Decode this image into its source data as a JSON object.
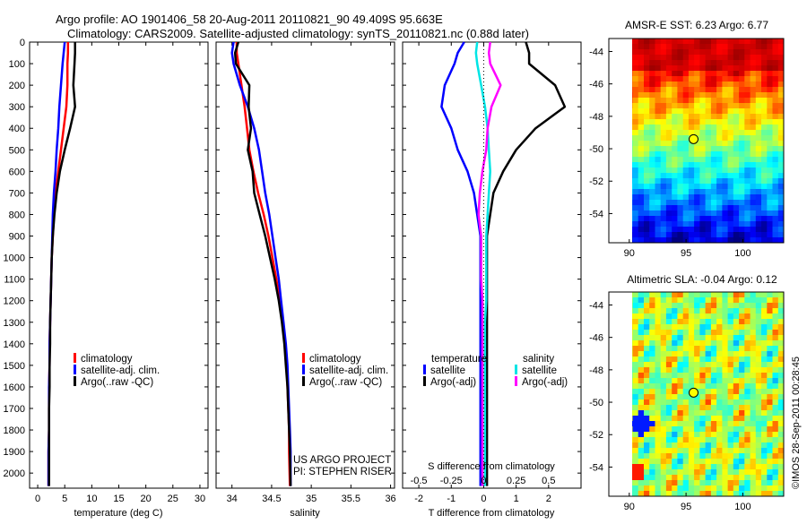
{
  "header": {
    "title_line1": "Argo profile: AO 1901406_58 20-Aug-2011 20110821_90 49.409S 95.663E",
    "title_line2": "Climatology: CARS2009. Satellite-adjusted climatology: synTS_20110821.nc (0.88d later)"
  },
  "credit": "©IMOS 28-Sep-2011 00:28:45",
  "colors": {
    "climatology": "#ff0000",
    "satellite": "#0000ff",
    "argo": "#000000",
    "sat_salinity": "#00e5e5",
    "argo_salinity": "#ff00ff"
  },
  "chart_data": [
    {
      "id": "temperature",
      "type": "line",
      "xlabel": "temperature (deg C)",
      "xlim": [
        -1.5,
        31.5
      ],
      "xticks": [
        "0",
        "5",
        "10",
        "15",
        "20",
        "25",
        "30"
      ],
      "xtick_values": [
        0,
        5,
        10,
        15,
        20,
        25,
        30
      ],
      "ylim": [
        2070,
        0
      ],
      "yticks": [
        "0",
        "100",
        "200",
        "300",
        "400",
        "500",
        "600",
        "700",
        "800",
        "900",
        "1000",
        "1100",
        "1200",
        "1300",
        "1400",
        "1500",
        "1600",
        "1700",
        "1800",
        "1900",
        "2000"
      ],
      "ytick_values": [
        0,
        100,
        200,
        300,
        400,
        500,
        600,
        700,
        800,
        900,
        1000,
        1100,
        1200,
        1300,
        1400,
        1500,
        1600,
        1700,
        1800,
        1900,
        2000
      ],
      "legend": [
        "climatology",
        "satellite-adj. clim.",
        "Argo(..raw -QC)"
      ],
      "series": [
        {
          "name": "climatology",
          "color": "#ff0000",
          "x": [
            5.6,
            5.6,
            5.5,
            5.5,
            5.3,
            4.8,
            4.3,
            3.8,
            3.3,
            3.0,
            2.8,
            2.6,
            2.5,
            2.4,
            2.3,
            2.2,
            2.2,
            2.1,
            2.1,
            2.1,
            2.0,
            2.0
          ],
          "y": [
            0,
            50,
            100,
            200,
            300,
            400,
            500,
            600,
            700,
            800,
            900,
            1000,
            1100,
            1200,
            1300,
            1400,
            1500,
            1600,
            1700,
            1800,
            1900,
            2060
          ]
        },
        {
          "name": "satellite-adj. clim.",
          "color": "#0000ff",
          "x": [
            5.0,
            4.8,
            4.6,
            4.3,
            4.0,
            3.8,
            3.5,
            3.3,
            3.0,
            2.8,
            2.7,
            2.6,
            2.5,
            2.4,
            2.3,
            2.2,
            2.2,
            2.1,
            2.1,
            2.1,
            2.0,
            2.0
          ],
          "y": [
            0,
            50,
            100,
            200,
            300,
            400,
            500,
            600,
            700,
            800,
            900,
            1000,
            1100,
            1200,
            1300,
            1400,
            1500,
            1600,
            1700,
            1800,
            1900,
            2060
          ]
        },
        {
          "name": "Argo(..raw -QC)",
          "color": "#000000",
          "x": [
            6.9,
            6.9,
            6.8,
            6.6,
            6.9,
            6.0,
            5.0,
            4.1,
            3.5,
            3.1,
            2.8,
            2.6,
            2.5,
            2.4,
            2.3,
            2.3,
            2.2,
            2.2,
            2.1,
            2.1,
            2.1,
            2.1
          ],
          "y": [
            0,
            50,
            100,
            200,
            300,
            400,
            500,
            600,
            700,
            800,
            900,
            1000,
            1100,
            1200,
            1300,
            1400,
            1500,
            1600,
            1700,
            1800,
            1900,
            2060
          ]
        }
      ]
    },
    {
      "id": "salinity",
      "type": "line",
      "xlabel": "salinity",
      "xlim": [
        33.8,
        36.05
      ],
      "xticks": [
        "34",
        "34.5",
        "35",
        "35.5",
        "36"
      ],
      "xtick_values": [
        34,
        34.5,
        35,
        35.5,
        36
      ],
      "ylim": [
        2070,
        0
      ],
      "legend": [
        "climatology",
        "satellite-adj. clim.",
        "Argo(..raw -QC)"
      ],
      "annotations": [
        "US ARGO PROJECT",
        "PI: STEPHEN RISER"
      ],
      "series": [
        {
          "name": "climatology",
          "color": "#ff0000",
          "x": [
            34.06,
            34.06,
            34.08,
            34.12,
            34.16,
            34.19,
            34.22,
            34.27,
            34.33,
            34.4,
            34.46,
            34.51,
            34.56,
            34.6,
            34.64,
            34.67,
            34.69,
            34.7,
            34.71,
            34.72,
            34.72,
            34.73
          ],
          "y": [
            0,
            50,
            100,
            200,
            300,
            400,
            500,
            600,
            700,
            800,
            900,
            1000,
            1100,
            1200,
            1300,
            1400,
            1500,
            1600,
            1700,
            1800,
            1900,
            2060
          ]
        },
        {
          "name": "satellite-adj. clim.",
          "color": "#0000ff",
          "x": [
            34.02,
            34.0,
            34.02,
            34.1,
            34.2,
            34.28,
            34.34,
            34.38,
            34.42,
            34.47,
            34.51,
            34.55,
            34.59,
            34.62,
            34.65,
            34.68,
            34.7,
            34.71,
            34.72,
            34.73,
            34.74,
            34.74
          ],
          "y": [
            0,
            50,
            100,
            200,
            300,
            400,
            500,
            600,
            700,
            800,
            900,
            1000,
            1100,
            1200,
            1300,
            1400,
            1500,
            1600,
            1700,
            1800,
            1900,
            2060
          ]
        },
        {
          "name": "Argo(..raw -QC)",
          "color": "#000000",
          "x": [
            34.08,
            34.04,
            34.05,
            34.22,
            34.21,
            34.24,
            34.2,
            34.26,
            34.28,
            34.35,
            34.42,
            34.48,
            34.54,
            34.59,
            34.63,
            34.66,
            34.68,
            34.7,
            34.71,
            34.72,
            34.73,
            34.74
          ],
          "y": [
            0,
            50,
            100,
            200,
            300,
            400,
            500,
            600,
            700,
            800,
            900,
            1000,
            1100,
            1200,
            1300,
            1400,
            1500,
            1600,
            1700,
            1800,
            1900,
            2060
          ]
        }
      ]
    },
    {
      "id": "difference",
      "type": "line",
      "xlabel": "T difference from climatology",
      "xlabel_top": "S difference from climatology",
      "xlim": [
        -2.5,
        3.0
      ],
      "xticks": [
        "-2",
        "-1",
        "0",
        "1",
        "2"
      ],
      "xtick_values": [
        -2,
        -1,
        0,
        1,
        2
      ],
      "sticks": [
        "-0.5",
        "-0.25",
        "0",
        "0.25",
        "0.5"
      ],
      "stick_values": [
        -0.5,
        -0.25,
        0,
        0.25,
        0.5
      ],
      "s_scale": 4,
      "ylim": [
        2070,
        0
      ],
      "legend_temperature": {
        "header": "temperature",
        "items": [
          "satellite",
          "Argo(-adj)"
        ]
      },
      "legend_salinity": {
        "header": "salinity",
        "items": [
          "satellite",
          "Argo(-adj)"
        ]
      },
      "series": [
        {
          "name": "temperature satellite",
          "color": "#0000ff",
          "x": [
            -0.6,
            -0.8,
            -0.9,
            -1.2,
            -1.3,
            -1.0,
            -0.8,
            -0.5,
            -0.3,
            -0.2,
            -0.1,
            -0.1,
            -0.1,
            -0.1,
            -0.1,
            -0.1,
            -0.1,
            -0.1,
            -0.1,
            -0.1,
            -0.1,
            -0.1
          ],
          "y": [
            0,
            50,
            100,
            200,
            300,
            400,
            500,
            600,
            700,
            800,
            900,
            1000,
            1100,
            1200,
            1300,
            1400,
            1500,
            1600,
            1700,
            1800,
            1900,
            2060
          ]
        },
        {
          "name": "temperature Argo(-adj)",
          "color": "#000000",
          "x": [
            1.3,
            1.4,
            1.4,
            2.2,
            2.5,
            1.6,
            1.0,
            0.6,
            0.3,
            0.2,
            0.1,
            0.1,
            0.1,
            0.1,
            0.1,
            0.1,
            0.1,
            0.1,
            0.1,
            0.1,
            0.1,
            0.1
          ],
          "y": [
            0,
            50,
            100,
            200,
            300,
            400,
            500,
            600,
            700,
            800,
            900,
            1000,
            1100,
            1200,
            1300,
            1400,
            1500,
            1600,
            1700,
            1800,
            1900,
            2060
          ]
        },
        {
          "name": "salinity satellite",
          "color": "#00e5e5",
          "x": [
            -0.05,
            -0.06,
            -0.05,
            -0.02,
            0.01,
            0.03,
            0.04,
            0.05,
            0.04,
            0.03,
            0.02,
            0.02,
            0.02,
            0.02,
            0.01,
            0.01,
            0.01,
            0.01,
            0.01,
            0.01,
            0.01,
            0.01
          ],
          "y": [
            0,
            50,
            100,
            200,
            300,
            400,
            500,
            600,
            700,
            800,
            900,
            1000,
            1100,
            1200,
            1300,
            1400,
            1500,
            1600,
            1700,
            1800,
            1900,
            2060
          ]
        },
        {
          "name": "salinity Argo(-adj)",
          "color": "#ff00ff",
          "x": [
            0.05,
            0.04,
            0.05,
            0.13,
            0.06,
            0.03,
            0.02,
            -0.01,
            -0.03,
            -0.04,
            -0.02,
            -0.02,
            -0.02,
            -0.01,
            -0.01,
            -0.01,
            -0.01,
            -0.01,
            -0.01,
            -0.01,
            -0.01,
            -0.01
          ],
          "y": [
            0,
            50,
            100,
            200,
            300,
            400,
            500,
            600,
            700,
            800,
            900,
            1000,
            1100,
            1200,
            1300,
            1400,
            1500,
            1600,
            1700,
            1800,
            1900,
            2060
          ]
        }
      ]
    },
    {
      "id": "sst_map",
      "type": "heatmap",
      "title": "AMSR-E SST: 6.23 Argo: 6.77",
      "xticks": [
        "90",
        "95",
        "100"
      ],
      "xtick_values": [
        90,
        95,
        100
      ],
      "yticks": [
        "-44",
        "-46",
        "-48",
        "-50",
        "-52",
        "-54"
      ],
      "ytick_values": [
        -44,
        -46,
        -48,
        -50,
        -52,
        -54
      ],
      "xlim": [
        88.2,
        103.6
      ],
      "ylim": [
        -55.8,
        -43.2
      ],
      "data_xlim": [
        89.8,
        103.6
      ],
      "argo_position": {
        "lon": 95.663,
        "lat": -49.409
      }
    },
    {
      "id": "sla_map",
      "type": "heatmap",
      "title": "Altimetric SLA: -0.04 Argo: 0.12",
      "xticks": [
        "90",
        "95",
        "100"
      ],
      "xtick_values": [
        90,
        95,
        100
      ],
      "yticks": [
        "-44",
        "-46",
        "-48",
        "-50",
        "-52",
        "-54"
      ],
      "ytick_values": [
        -44,
        -46,
        -48,
        -50,
        -52,
        -54
      ],
      "xlim": [
        88.2,
        103.6
      ],
      "ylim": [
        -55.8,
        -43.2
      ],
      "data_xlim": [
        89.8,
        103.6
      ],
      "argo_position": {
        "lon": 95.663,
        "lat": -49.409
      }
    }
  ]
}
